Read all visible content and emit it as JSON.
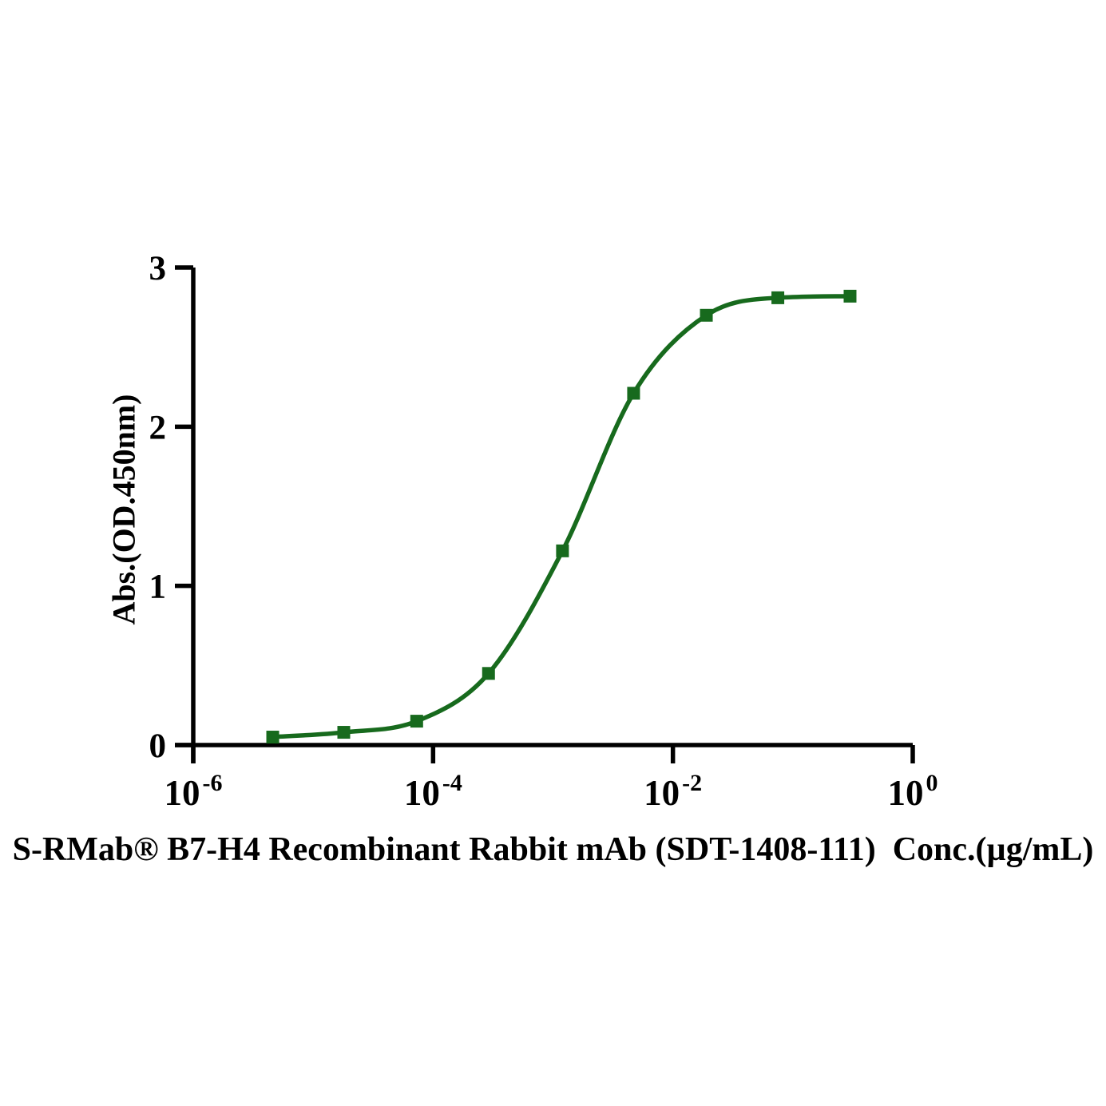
{
  "figure": {
    "background_color": "#ffffff",
    "axis_color": "#000000"
  },
  "chart_data": {
    "type": "line",
    "title": "",
    "xlabel": "S-RMab® B7-H4 Recombinant Rabbit mAb (SDT-1408-111)  Conc.(µg/mL)",
    "ylabel": "Abs.(OD.450nm)",
    "x_scale": "log10",
    "xlim": [
      1e-06,
      1
    ],
    "ylim": [
      0,
      3
    ],
    "x_tick_exponents": [
      -6,
      -4,
      -2,
      0
    ],
    "x_tick_base": "10",
    "y_ticks": [
      0,
      1,
      2,
      3
    ],
    "grid": false,
    "legend": "none",
    "series": [
      {
        "color": "#176a1d",
        "marker": "square",
        "marker_size": 16,
        "line_width": 5.5,
        "points": [
          {
            "x": 4.6e-06,
            "y": 0.05
          },
          {
            "x": 1.8e-05,
            "y": 0.08
          },
          {
            "x": 7.3e-05,
            "y": 0.15
          },
          {
            "x": 0.00029,
            "y": 0.45
          },
          {
            "x": 0.0012,
            "y": 1.22
          },
          {
            "x": 0.0047,
            "y": 2.21
          },
          {
            "x": 0.019,
            "y": 2.7
          },
          {
            "x": 0.075,
            "y": 2.81
          },
          {
            "x": 0.3,
            "y": 2.82
          }
        ]
      }
    ]
  }
}
